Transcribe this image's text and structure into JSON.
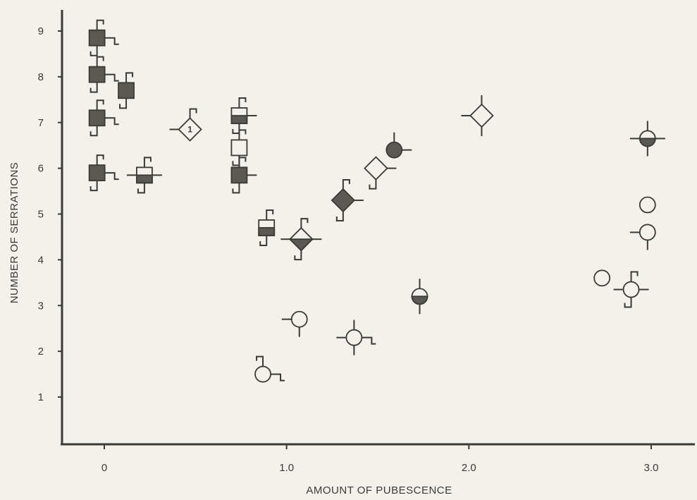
{
  "chart_data": {
    "type": "scatter",
    "xlabel": "AMOUNT OF PUBESCENCE",
    "ylabel": "NUMBER OF SERRATIONS",
    "xlim": [
      -0.25,
      3.25
    ],
    "ylim": [
      0.1,
      9.6
    ],
    "x_ticks": [
      {
        "value": 0,
        "label": "0"
      },
      {
        "value": 1,
        "label": "1.0"
      },
      {
        "value": 2,
        "label": "2.0"
      },
      {
        "value": 3,
        "label": "3.0"
      }
    ],
    "y_ticks": [
      {
        "value": 1,
        "label": "1"
      },
      {
        "value": 2,
        "label": "2"
      },
      {
        "value": 3,
        "label": "3"
      },
      {
        "value": 4,
        "label": "4"
      },
      {
        "value": 5,
        "label": "5"
      },
      {
        "value": 6,
        "label": "6"
      },
      {
        "value": 7,
        "label": "7"
      },
      {
        "value": 8,
        "label": "8"
      },
      {
        "value": 9,
        "label": "9"
      }
    ],
    "grid": false,
    "points": [
      {
        "x": -0.04,
        "y": 8.85,
        "shape": "square",
        "fill": "full",
        "flags": [
          "t-tr",
          "t-bl",
          "t-r"
        ]
      },
      {
        "x": -0.04,
        "y": 8.05,
        "shape": "square",
        "fill": "full",
        "flags": [
          "t-tr",
          "t-bl",
          "t-r"
        ]
      },
      {
        "x": 0.12,
        "y": 7.7,
        "shape": "square",
        "fill": "full",
        "flags": [
          "t-tr",
          "t-bl"
        ]
      },
      {
        "x": -0.04,
        "y": 7.1,
        "shape": "square",
        "fill": "full",
        "flags": [
          "t-tr",
          "t-bl",
          "t-r"
        ]
      },
      {
        "x": -0.04,
        "y": 5.9,
        "shape": "square",
        "fill": "full",
        "flags": [
          "t-tr",
          "t-bl",
          "t-r"
        ]
      },
      {
        "x": 0.22,
        "y": 5.85,
        "shape": "square",
        "fill": "bottom",
        "flags": [
          "t-tr",
          "t-bl",
          "r",
          "l"
        ]
      },
      {
        "x": 0.47,
        "y": 6.85,
        "shape": "diamond",
        "fill": "none",
        "label": "1",
        "flags": [
          "t-tr",
          "l"
        ]
      },
      {
        "x": 0.74,
        "y": 7.15,
        "shape": "square",
        "fill": "bottom",
        "flags": [
          "t-tr",
          "t-bl",
          "r"
        ]
      },
      {
        "x": 0.74,
        "y": 6.45,
        "shape": "square",
        "fill": "none",
        "flags": [
          "t-tr",
          "t-bl"
        ]
      },
      {
        "x": 0.74,
        "y": 5.85,
        "shape": "square",
        "fill": "full",
        "flags": [
          "t-tr",
          "t-bl",
          "r"
        ]
      },
      {
        "x": 0.89,
        "y": 4.7,
        "shape": "square",
        "fill": "bottom",
        "flags": [
          "t-tr",
          "t-bl"
        ]
      },
      {
        "x": 1.08,
        "y": 4.45,
        "shape": "diamond",
        "fill": "bottom",
        "flags": [
          "t-tr",
          "t-bl",
          "l",
          "r"
        ]
      },
      {
        "x": 1.31,
        "y": 5.3,
        "shape": "diamond",
        "fill": "full",
        "flags": [
          "t-tr",
          "t-bl",
          "r"
        ]
      },
      {
        "x": 1.49,
        "y": 6.0,
        "shape": "diamond",
        "fill": "none",
        "flags": [
          "t-bl",
          "r"
        ]
      },
      {
        "x": 1.59,
        "y": 6.4,
        "shape": "circle",
        "fill": "full",
        "flags": [
          "t",
          "r"
        ]
      },
      {
        "x": 2.07,
        "y": 7.15,
        "shape": "diamond",
        "fill": "none",
        "flags": [
          "t",
          "l",
          "b"
        ]
      },
      {
        "x": 2.98,
        "y": 6.65,
        "shape": "circle",
        "fill": "bottom",
        "flags": [
          "t",
          "b",
          "r",
          "l"
        ]
      },
      {
        "x": 2.98,
        "y": 5.2,
        "shape": "circle",
        "fill": "none",
        "flags": []
      },
      {
        "x": 2.98,
        "y": 4.6,
        "shape": "circle",
        "fill": "none",
        "flags": [
          "l",
          "b"
        ]
      },
      {
        "x": 2.73,
        "y": 3.6,
        "shape": "circle",
        "fill": "none",
        "flags": []
      },
      {
        "x": 2.89,
        "y": 3.35,
        "shape": "circle",
        "fill": "none",
        "flags": [
          "t-tr",
          "t-bl",
          "r",
          "l"
        ]
      },
      {
        "x": 1.73,
        "y": 3.2,
        "shape": "circle",
        "fill": "bottom",
        "flags": [
          "t",
          "b"
        ]
      },
      {
        "x": 1.07,
        "y": 2.7,
        "shape": "circle",
        "fill": "none",
        "flags": [
          "l",
          "b"
        ]
      },
      {
        "x": 1.37,
        "y": 2.3,
        "shape": "circle",
        "fill": "none",
        "flags": [
          "t",
          "b",
          "l",
          "t-r"
        ]
      },
      {
        "x": 0.87,
        "y": 1.5,
        "shape": "circle",
        "fill": "none",
        "flags": [
          "t-tl",
          "t-r"
        ]
      }
    ]
  },
  "colors": {
    "background": "#f2f1ea",
    "ink": "#3a3a36",
    "fill": "#5a5a52"
  }
}
